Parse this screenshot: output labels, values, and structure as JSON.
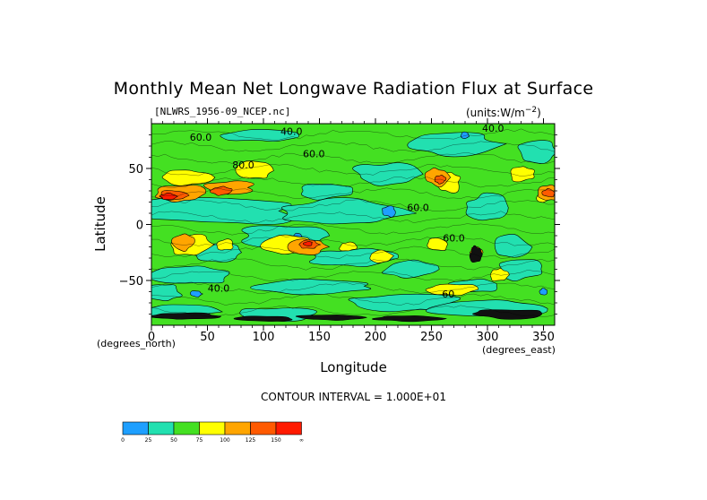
{
  "chart_data": {
    "type": "heatmap",
    "title": "Monthly Mean Net Longwave Radiation Flux at Surface",
    "subtitle": "[NLWRS_1956-09_NCEP.nc]",
    "units": "(units:W/m^2)",
    "xlabel": "Longitude",
    "ylabel": "Latitude",
    "x_unit_note": "(degrees_north)",
    "y_unit_note": "(degrees_east)",
    "xlim": [
      0,
      360
    ],
    "ylim": [
      -90,
      90
    ],
    "x_ticks": [
      0,
      50,
      100,
      150,
      200,
      250,
      300,
      350
    ],
    "y_ticks": [
      50,
      0,
      -50
    ],
    "contour_interval": "CONTOUR INTERVAL = 1.000E+01",
    "contour_labels": [
      {
        "text": "60.0",
        "lon": 44,
        "lat": 75
      },
      {
        "text": "40.0",
        "lon": 125,
        "lat": 80
      },
      {
        "text": "60.0",
        "lon": 145,
        "lat": 60
      },
      {
        "text": "80.0",
        "lon": 82,
        "lat": 50
      },
      {
        "text": "60.0",
        "lon": 238,
        "lat": 12
      },
      {
        "text": "60.0",
        "lon": 270,
        "lat": -15
      },
      {
        "text": "40.0",
        "lon": 305,
        "lat": 83
      },
      {
        "text": "40.0",
        "lon": 60,
        "lat": -60
      },
      {
        "text": "60",
        "lon": 265,
        "lat": -65
      }
    ],
    "colorbar": {
      "ticks": [
        "0",
        "25",
        "50",
        "75",
        "100",
        "125",
        "150",
        "∞"
      ],
      "colors": [
        "#1e9fff",
        "#22e0b0",
        "#44e022",
        "#ffff00",
        "#ffa500",
        "#ff5a00",
        "#ff1a00"
      ]
    },
    "colors": {
      "blue": "#1e9fff",
      "cyan": "#22e0b0",
      "green": "#44e022",
      "yellow": "#ffff00",
      "orange": "#ffa500",
      "dark_orange": "#ff5a00",
      "red": "#ff1a00",
      "black": "#000000"
    }
  }
}
